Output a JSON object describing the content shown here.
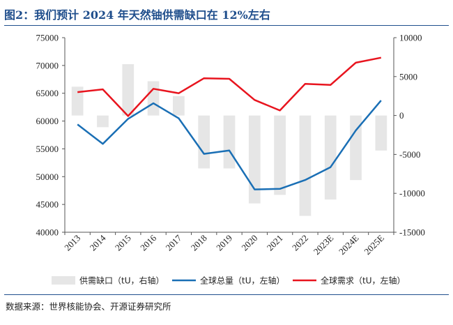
{
  "figure_title": "图2：我们预计 2024 年天然铀供需缺口在 12%左右",
  "source_note": "数据来源：世界核能协会、开源证券研究所",
  "chart_data": {
    "type": "bar+line",
    "categories": [
      "2013",
      "2014",
      "2015",
      "2016",
      "2017",
      "2018",
      "2019",
      "2020",
      "2021",
      "2022",
      "2023E",
      "2024E",
      "2025E"
    ],
    "left_axis": {
      "ylim": [
        40000,
        75000
      ],
      "ticks": [
        40000,
        45000,
        50000,
        55000,
        60000,
        65000,
        70000,
        75000
      ]
    },
    "right_axis": {
      "ylim": [
        -15000,
        10000
      ],
      "ticks": [
        -15000,
        -10000,
        -5000,
        0,
        5000,
        10000
      ]
    },
    "series": [
      {
        "name": "供需缺口（tU，右轴）",
        "type": "bar",
        "axis": "right",
        "color": "#e6e6e6",
        "values": [
          3700,
          -1500,
          6600,
          4400,
          2500,
          -6800,
          -6800,
          -11300,
          -10200,
          -12900,
          -10800,
          -8300,
          -4500
        ]
      },
      {
        "name": "全球总量（tU，左轴）",
        "type": "line",
        "axis": "left",
        "color": "#1a6fb5",
        "values": [
          59400,
          55900,
          60400,
          63200,
          60500,
          54100,
          54700,
          47700,
          47800,
          49400,
          51700,
          58300,
          63700
        ]
      },
      {
        "name": "全球需求（tU，左轴）",
        "type": "line",
        "axis": "left",
        "color": "#e8141e",
        "values": [
          65200,
          65700,
          60900,
          65800,
          65000,
          67700,
          67600,
          63800,
          61900,
          66700,
          66500,
          70500,
          71400
        ]
      }
    ]
  }
}
